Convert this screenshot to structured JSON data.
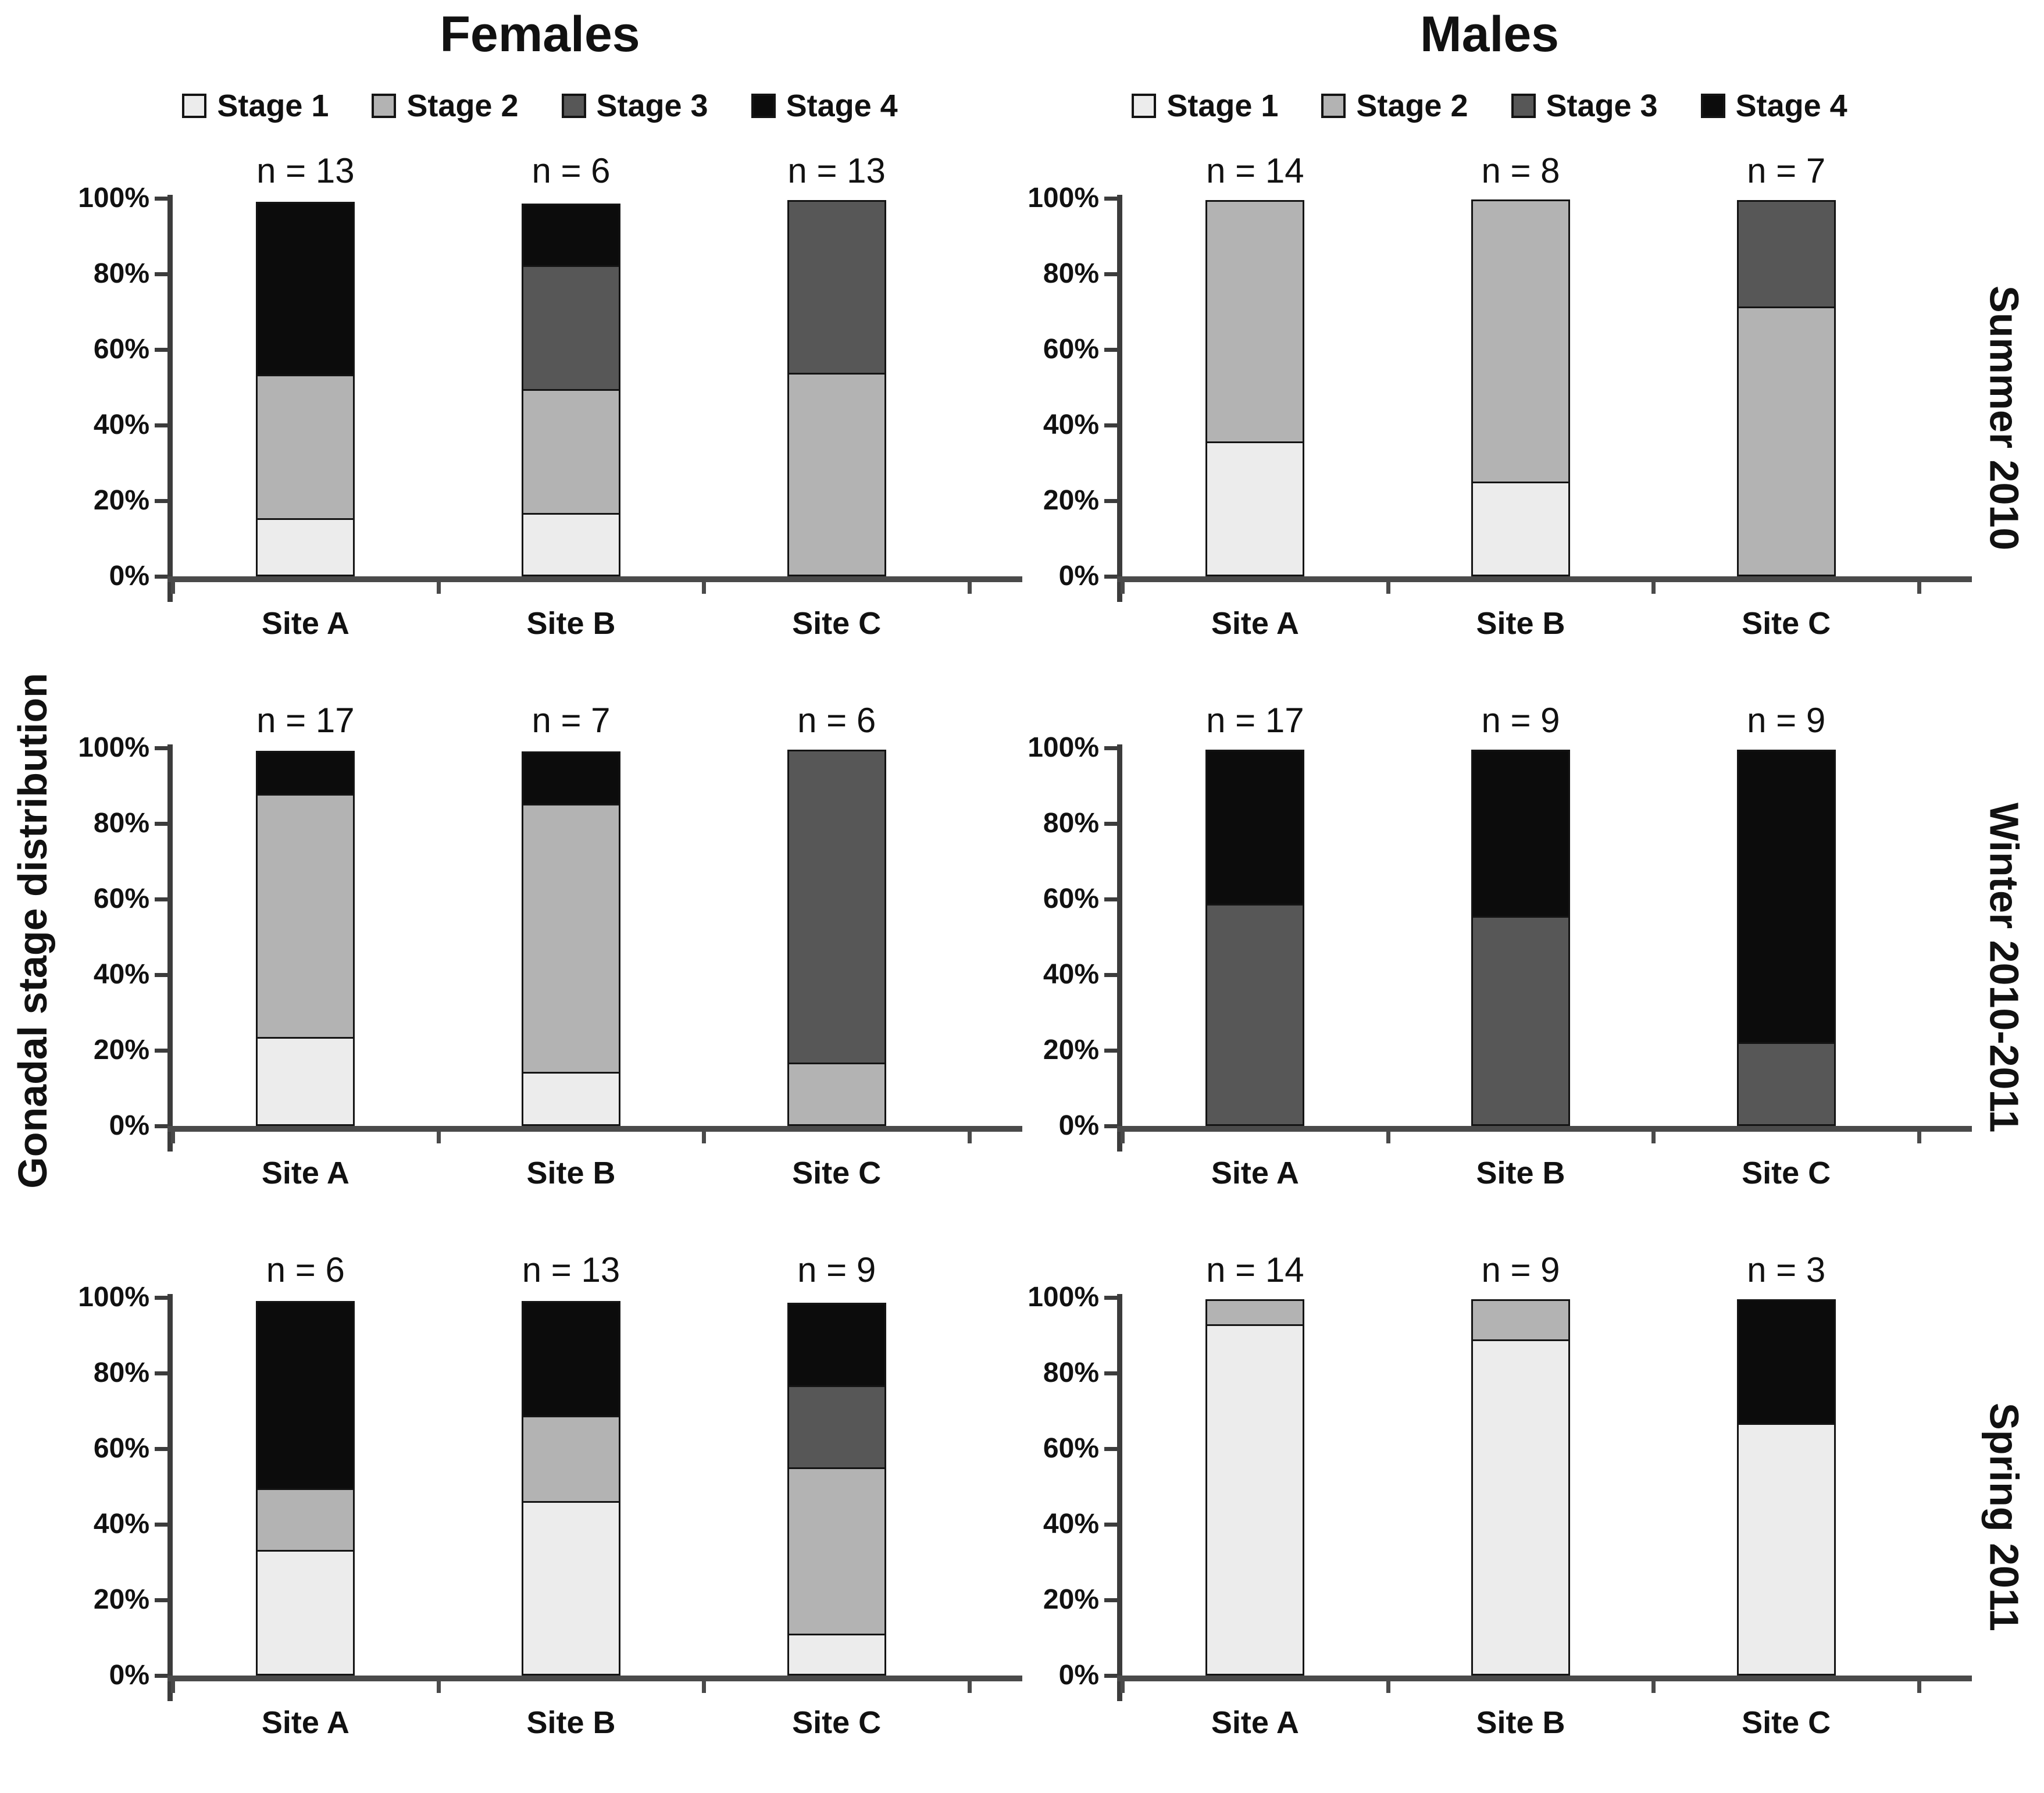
{
  "figure": {
    "left_axis_label": "Gonadal stage distribution",
    "columns": [
      {
        "title": "Females"
      },
      {
        "title": "Males"
      }
    ],
    "rows": [
      {
        "label": "Summer 2010"
      },
      {
        "label": "Winter 2010-2011"
      },
      {
        "label": "Spring 2011"
      }
    ]
  },
  "chart_data": {
    "type": "bar",
    "subtype": "stacked-100-percent",
    "title": "",
    "xlabel": "",
    "ylabel": "Gonadal stage distribution",
    "ylim": [
      0,
      100
    ],
    "ytick_labels": [
      "0%",
      "20%",
      "40%",
      "60%",
      "80%",
      "100%"
    ],
    "grid": false,
    "legend_position": "top",
    "n_label_prefix": "n = ",
    "stages": [
      {
        "name": "Stage 1",
        "color": "#ececec"
      },
      {
        "name": "Stage 2",
        "color": "#b3b3b3"
      },
      {
        "name": "Stage 3",
        "color": "#575757"
      },
      {
        "name": "Stage 4",
        "color": "#0c0c0c"
      }
    ],
    "sites": [
      "Site A",
      "Site B",
      "Site C"
    ],
    "panels": [
      {
        "column": "Females",
        "row": "Summer 2010",
        "bars": [
          {
            "site": "Site A",
            "n": 13,
            "stage_pct": [
              15.4,
              38.5,
              0,
              46.1
            ]
          },
          {
            "site": "Site B",
            "n": 6,
            "stage_pct": [
              16.7,
              33.3,
              33.3,
              16.7
            ]
          },
          {
            "site": "Site C",
            "n": 13,
            "stage_pct": [
              0,
              53.8,
              46.2,
              0
            ]
          }
        ]
      },
      {
        "column": "Males",
        "row": "Summer 2010",
        "bars": [
          {
            "site": "Site A",
            "n": 14,
            "stage_pct": [
              35.7,
              64.3,
              0,
              0
            ]
          },
          {
            "site": "Site B",
            "n": 8,
            "stage_pct": [
              25,
              75,
              0,
              0
            ]
          },
          {
            "site": "Site C",
            "n": 7,
            "stage_pct": [
              0,
              71.4,
              28.6,
              0
            ]
          }
        ]
      },
      {
        "column": "Females",
        "row": "Winter 2010-2011",
        "bars": [
          {
            "site": "Site A",
            "n": 17,
            "stage_pct": [
              23.5,
              64.7,
              0,
              11.8
            ]
          },
          {
            "site": "Site B",
            "n": 7,
            "stage_pct": [
              14.3,
              71.4,
              0,
              14.3
            ]
          },
          {
            "site": "Site C",
            "n": 6,
            "stage_pct": [
              0,
              16.7,
              83.3,
              0
            ]
          }
        ]
      },
      {
        "column": "Males",
        "row": "Winter 2010-2011",
        "bars": [
          {
            "site": "Site A",
            "n": 17,
            "stage_pct": [
              0,
              0,
              58.8,
              41.2
            ]
          },
          {
            "site": "Site B",
            "n": 9,
            "stage_pct": [
              0,
              0,
              55.6,
              44.4
            ]
          },
          {
            "site": "Site C",
            "n": 9,
            "stage_pct": [
              0,
              0,
              22.2,
              77.8
            ]
          }
        ]
      },
      {
        "column": "Females",
        "row": "Spring 2011",
        "bars": [
          {
            "site": "Site A",
            "n": 6,
            "stage_pct": [
              33.3,
              16.7,
              0,
              50
            ]
          },
          {
            "site": "Site B",
            "n": 13,
            "stage_pct": [
              46.2,
              23.1,
              0,
              30.7
            ]
          },
          {
            "site": "Site C",
            "n": 9,
            "stage_pct": [
              11.1,
              44.4,
              22.2,
              22.3
            ]
          }
        ]
      },
      {
        "column": "Males",
        "row": "Spring 2011",
        "bars": [
          {
            "site": "Site A",
            "n": 14,
            "stage_pct": [
              92.9,
              7.1,
              0,
              0
            ]
          },
          {
            "site": "Site B",
            "n": 9,
            "stage_pct": [
              88.9,
              11.1,
              0,
              0
            ]
          },
          {
            "site": "Site C",
            "n": 3,
            "stage_pct": [
              66.7,
              0,
              0,
              33.3
            ]
          }
        ]
      }
    ]
  }
}
